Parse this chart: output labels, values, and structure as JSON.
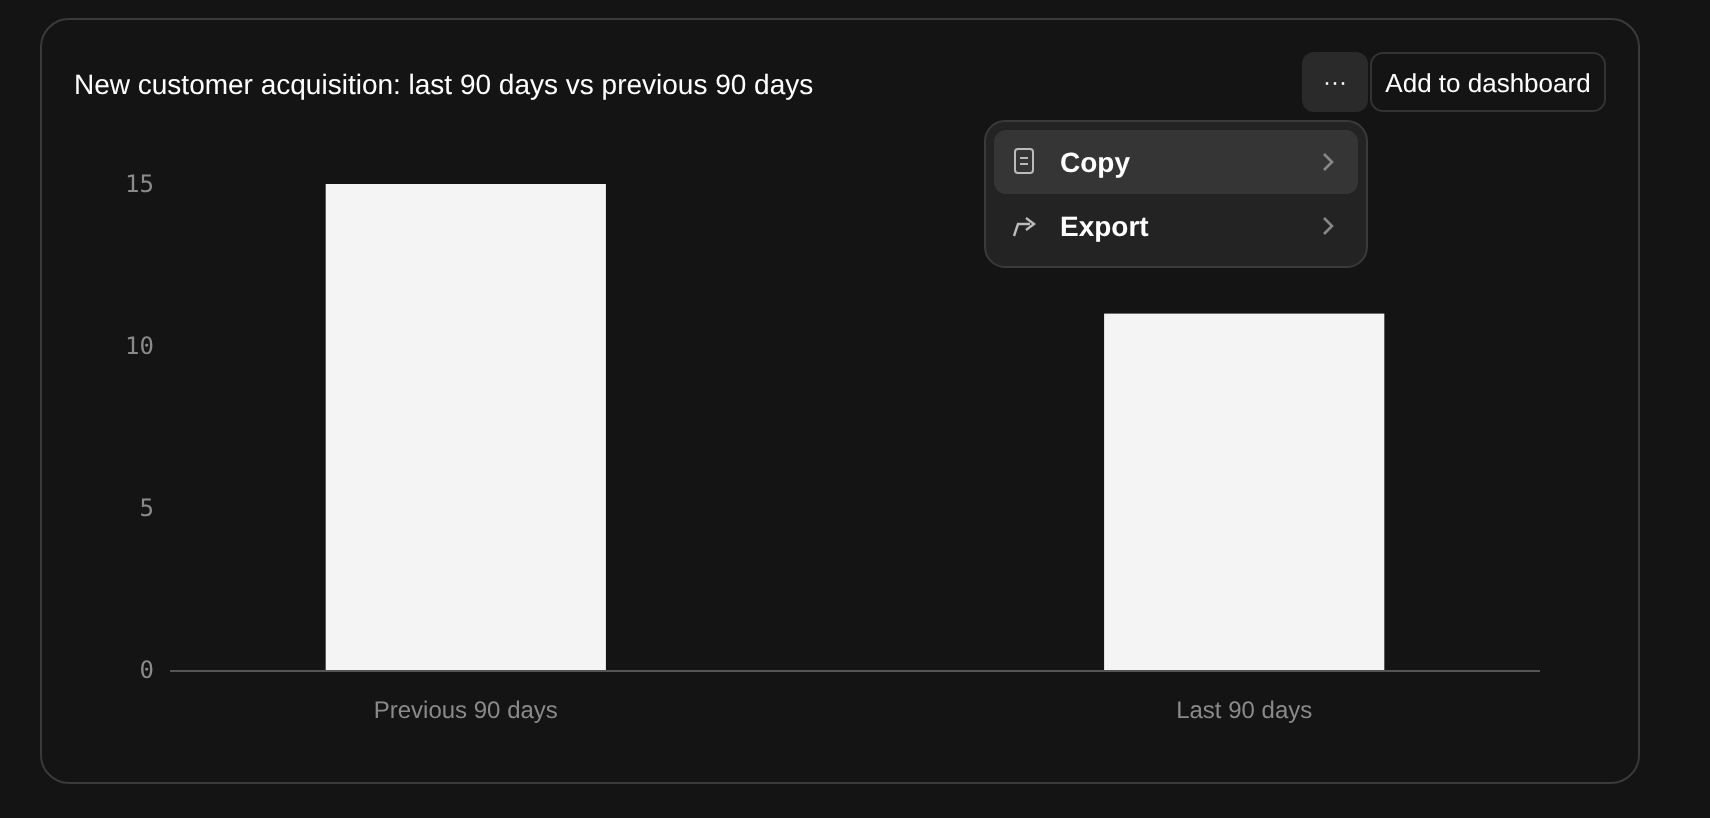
{
  "chart_data": {
    "type": "bar",
    "title": "New customer acquisition: last 90 days vs previous 90 days",
    "categories": [
      "Previous 90 days",
      "Last 90 days"
    ],
    "values": [
      15,
      11
    ],
    "color": "#f4f4f4",
    "ylim": [
      0,
      15
    ],
    "yticks": [
      0,
      5,
      10,
      15
    ],
    "grid": false,
    "annotations": [
      "···",
      "Add to dashboard",
      "Copy",
      "Export"
    ]
  }
}
